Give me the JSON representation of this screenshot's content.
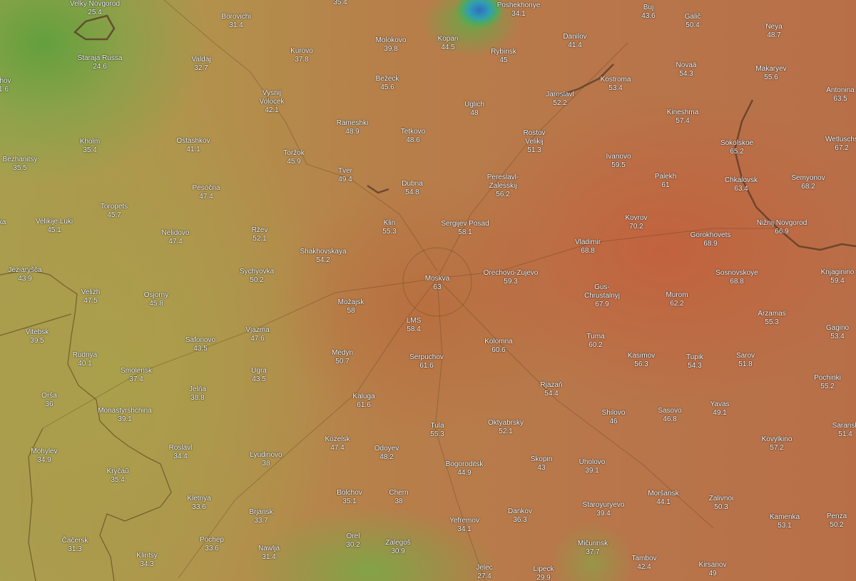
{
  "map": {
    "layer": "heat",
    "colors": {
      "low": "#5fa03c",
      "mid": "#b2934c",
      "high": "#c25f3e",
      "water_deep": "#2f6fc0"
    },
    "cities": [
      {
        "name": "Velký Novgorod",
        "value": "25.4"
      },
      {
        "name": "Borovichi",
        "value": "31.4"
      },
      {
        "name": "",
        "value": "35.4"
      },
      {
        "name": "Staraja Russa",
        "value": "24.6"
      },
      {
        "name": "Valdaj",
        "value": "32.7"
      },
      {
        "name": "Kurovo",
        "value": "37.8"
      },
      {
        "name": "Molokovo",
        "value": "39.8"
      },
      {
        "name": "Kopan",
        "value": "44.5"
      },
      {
        "name": "Poshekhonye",
        "value": "34.1"
      },
      {
        "name": "Rybinsk",
        "value": "45"
      },
      {
        "name": "Danilov",
        "value": "41.4"
      },
      {
        "name": "Buj",
        "value": "43.6"
      },
      {
        "name": "Galič",
        "value": "50.4"
      },
      {
        "name": "Neya",
        "value": "48.7"
      },
      {
        "name": "khov",
        "value": "1.6"
      },
      {
        "name": "Vysnij Volocek",
        "value": "42.1"
      },
      {
        "name": "Bežeck",
        "value": "45.6"
      },
      {
        "name": "Uglich",
        "value": "48"
      },
      {
        "name": "Jaroslavl",
        "value": "52.2"
      },
      {
        "name": "Kostroma",
        "value": "53.4"
      },
      {
        "name": "Novaä",
        "value": "54.3"
      },
      {
        "name": "Makaryev",
        "value": "55.6"
      },
      {
        "name": "Antonina",
        "value": "63.5"
      },
      {
        "name": "Rameshki",
        "value": "48.9"
      },
      {
        "name": "Tetkovo",
        "value": "48.6"
      },
      {
        "name": "Rostov Velikij",
        "value": "51.3"
      },
      {
        "name": "Kineshma",
        "value": "57.4"
      },
      {
        "name": "Kholm",
        "value": "35.4"
      },
      {
        "name": "Ostashkov",
        "value": "41.1"
      },
      {
        "name": "Bezhanitsy",
        "value": "35.5"
      },
      {
        "name": "Toržok",
        "value": "45.9"
      },
      {
        "name": "Sokolskoe",
        "value": "65.2"
      },
      {
        "name": "Wetluschs",
        "value": "67.2"
      },
      {
        "name": "Ivanovo",
        "value": "59.5"
      },
      {
        "name": "Tver",
        "value": "49.4"
      },
      {
        "name": "Dubna",
        "value": "54.8"
      },
      {
        "name": "Pereslavl-Zalesskij",
        "value": "56.2"
      },
      {
        "name": "Palekh",
        "value": "61"
      },
      {
        "name": "Chkalovsk",
        "value": "63.4"
      },
      {
        "name": "Semyonov",
        "value": "68.2"
      },
      {
        "name": "Pesočna",
        "value": "47.4"
      },
      {
        "name": "Toropets",
        "value": "45.7"
      },
      {
        "name": "ka",
        "value": ""
      },
      {
        "name": "Velikije Luki",
        "value": "45.1"
      },
      {
        "name": "Klin",
        "value": "55.3"
      },
      {
        "name": "Sergijev Posad",
        "value": "58.1"
      },
      {
        "name": "Kovrov",
        "value": "70.2"
      },
      {
        "name": "Nižnij Novgorod",
        "value": "66.9"
      },
      {
        "name": "Nelidovo",
        "value": "47.4"
      },
      {
        "name": "Ržev",
        "value": "52.1"
      },
      {
        "name": "Gorokhovets",
        "value": "68.9"
      },
      {
        "name": "Vladimir",
        "value": "68.8"
      },
      {
        "name": "Shakhovskaya",
        "value": "54.2"
      },
      {
        "name": "Jeziaryšča",
        "value": "43.9"
      },
      {
        "name": "Sychyovka",
        "value": "50.2"
      },
      {
        "name": "Moskva",
        "value": "63"
      },
      {
        "name": "Orechovo-Zujevo",
        "value": "59.3"
      },
      {
        "name": "Sosnovskoye",
        "value": "68.8"
      },
      {
        "name": "Knjaginino",
        "value": "59.4"
      },
      {
        "name": "Velizh",
        "value": "47.5"
      },
      {
        "name": "Osjorny",
        "value": "45.8"
      },
      {
        "name": "Gus-Chrustalnyj",
        "value": "67.9"
      },
      {
        "name": "Murom",
        "value": "62.2"
      },
      {
        "name": "Možajsk",
        "value": "58"
      },
      {
        "name": "Arzamas",
        "value": "55.3"
      },
      {
        "name": "LMS",
        "value": "58.4"
      },
      {
        "name": "Vitebsk",
        "value": "39.5"
      },
      {
        "name": "Vjazma",
        "value": "47.6"
      },
      {
        "name": "Tuma",
        "value": "60.2"
      },
      {
        "name": "Gagino",
        "value": "53.4"
      },
      {
        "name": "Safonovo",
        "value": "43.5"
      },
      {
        "name": "Kolomna",
        "value": "60.6"
      },
      {
        "name": "Medyn",
        "value": "50.7"
      },
      {
        "name": "Rudnya",
        "value": "40.1"
      },
      {
        "name": "Kasimov",
        "value": "56.3"
      },
      {
        "name": "Tupik",
        "value": "54.3"
      },
      {
        "name": "Sarov",
        "value": "51.8"
      },
      {
        "name": "Serpuchov",
        "value": "61.6"
      },
      {
        "name": "Smolensk",
        "value": "37.4"
      },
      {
        "name": "Ugra",
        "value": "43.5"
      },
      {
        "name": "Pochinki",
        "value": "55.2"
      },
      {
        "name": "Rjazaň",
        "value": "54.4"
      },
      {
        "name": "Jelňa",
        "value": "38.8"
      },
      {
        "name": "Kaluga",
        "value": "61.6"
      },
      {
        "name": "Orša",
        "value": "36"
      },
      {
        "name": "Yavas",
        "value": "49.1"
      },
      {
        "name": "Shilovo",
        "value": "46"
      },
      {
        "name": "Sasovo",
        "value": "46.8"
      },
      {
        "name": "Monastyrshchina",
        "value": "39.1"
      },
      {
        "name": "Tula",
        "value": "55.3"
      },
      {
        "name": "Oktyabrsky",
        "value": "52.1"
      },
      {
        "name": "Saransk",
        "value": "51.4"
      },
      {
        "name": "Kozelsk",
        "value": "47.4"
      },
      {
        "name": "Odoyev",
        "value": "48.2"
      },
      {
        "name": "Roslavl",
        "value": "34.4"
      },
      {
        "name": "Mohylev",
        "value": "34.9"
      },
      {
        "name": "Lyudinovo",
        "value": "38"
      },
      {
        "name": "Kovylkino",
        "value": "57.2"
      },
      {
        "name": "Skopin",
        "value": "43"
      },
      {
        "name": "Uholovo",
        "value": "39.1"
      },
      {
        "name": "Bogoroditsk",
        "value": "44.9"
      },
      {
        "name": "Kryčaŭ",
        "value": "35.4"
      },
      {
        "name": "Kletnya",
        "value": "33.6"
      },
      {
        "name": "Bolchov",
        "value": "35.1"
      },
      {
        "name": "Chern",
        "value": "38"
      },
      {
        "name": "Moršansk",
        "value": "44.1"
      },
      {
        "name": "Zalivnoi",
        "value": "50.3"
      },
      {
        "name": "Brjansk",
        "value": "33.7"
      },
      {
        "name": "Staroyuryevo",
        "value": "39.4"
      },
      {
        "name": "Dankov",
        "value": "36.3"
      },
      {
        "name": "Yefremov",
        "value": "34.1"
      },
      {
        "name": "Kamenka",
        "value": "53.1"
      },
      {
        "name": "Penza",
        "value": "50.2"
      },
      {
        "name": "Orel",
        "value": "30.2"
      },
      {
        "name": "Zalegoš",
        "value": "30.9"
      },
      {
        "name": "Čačersk",
        "value": "31.3"
      },
      {
        "name": "Pochep",
        "value": "33.6"
      },
      {
        "name": "Nawlja",
        "value": "31.4"
      },
      {
        "name": "Klintsy",
        "value": "34.3"
      },
      {
        "name": "Mičurinsk",
        "value": "37.7"
      },
      {
        "name": "Tambov",
        "value": "42.4"
      },
      {
        "name": "Kirsanov",
        "value": "49"
      },
      {
        "name": "Jelec",
        "value": "27.4"
      },
      {
        "name": "Lipeck",
        "value": "29.9"
      }
    ]
  }
}
